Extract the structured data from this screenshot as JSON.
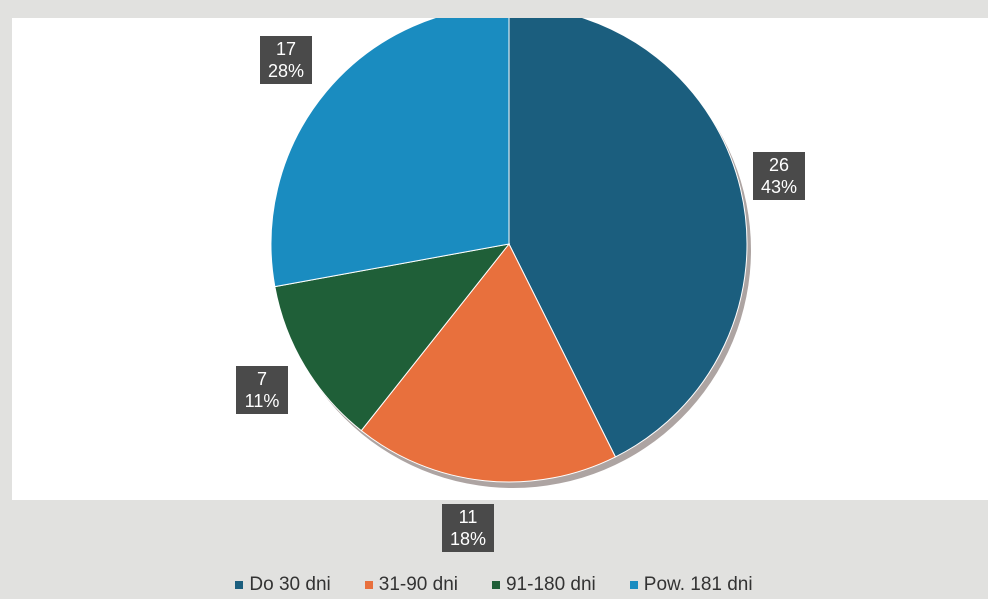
{
  "chart_data": {
    "type": "pie",
    "categories": [
      "Do 30 dni",
      "31-90 dni",
      "91-180 dni",
      "Pow. 181 dni"
    ],
    "values": [
      26,
      11,
      7,
      17
    ],
    "percent_labels": [
      "43%",
      "18%",
      "11%",
      "28%"
    ],
    "colors": [
      "#1b5e7e",
      "#e8703d",
      "#1f5f38",
      "#1a8cc0"
    ],
    "legend_position": "bottom",
    "start_angle": "12 o'clock",
    "direction": "clockwise",
    "label_style": "value and percent in dark boxes"
  }
}
